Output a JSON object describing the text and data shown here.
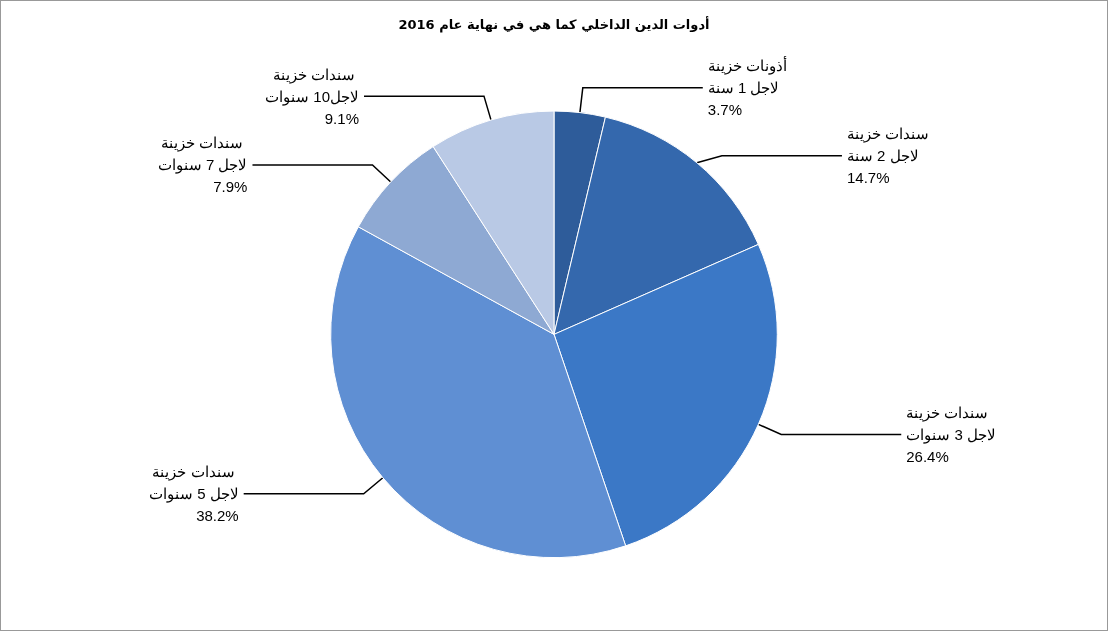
{
  "chart_data": {
    "type": "pie",
    "title": "أدوات الدين الداخلي كما هي في نهاية عام 2016",
    "categories": [
      "أذونات خزينة لاجل 1 سنة",
      "سندات خزينة لاجل 2 سنة",
      "سندات خزينة لاجل 3 سنوات",
      "سندات خزينة لاجل 5 سنوات",
      "سندات خزينة لاجل 7 سنوات",
      "سندات خزينة لاجل10 سنوات"
    ],
    "values": [
      3.7,
      14.7,
      26.4,
      38.2,
      7.9,
      9.1
    ],
    "colors": [
      "#2e5c9a",
      "#3468ad",
      "#3b78c6",
      "#5f8fd3",
      "#8ea9d3",
      "#b9c9e5"
    ],
    "value_labels": [
      "3.7%",
      "14.7%",
      "26.4%",
      "38.2%",
      "7.9%",
      "9.1%"
    ]
  }
}
